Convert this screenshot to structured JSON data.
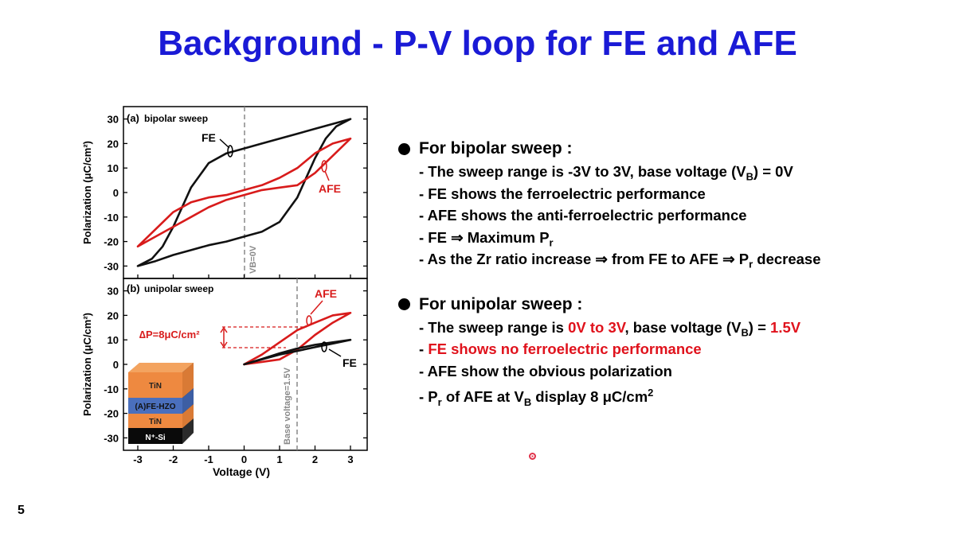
{
  "slide": {
    "title": "Background - P-V loop for FE and AFE",
    "page_number": "5"
  },
  "bullets": [
    {
      "heading": "For bipolar sweep :",
      "lines": [
        {
          "parts": [
            {
              "t": "- The sweep range is -3V to 3V, base voltage (V"
            },
            {
              "t": "B",
              "sub": true
            },
            {
              "t": ") = 0V"
            }
          ]
        },
        {
          "parts": [
            {
              "t": "- FE shows the ferroelectric performance"
            }
          ]
        },
        {
          "parts": [
            {
              "t": "- AFE shows the anti-ferroelectric performance"
            }
          ]
        },
        {
          "parts": [
            {
              "t": "- FE ⇒ Maximum P"
            },
            {
              "t": "r",
              "sub": true
            }
          ]
        },
        {
          "parts": [
            {
              "t": "- As the Zr ratio increase ⇒ from FE to AFE ⇒ P"
            },
            {
              "t": "r",
              "sub": true
            },
            {
              "t": " decrease"
            }
          ]
        }
      ]
    },
    {
      "heading": "For unipolar sweep :",
      "lines": [
        {
          "parts": [
            {
              "t": "- The sweep range is "
            },
            {
              "t": "0V to 3V",
              "red": true
            },
            {
              "t": ", base voltage (V"
            },
            {
              "t": "B",
              "sub": true
            },
            {
              "t": ") = "
            },
            {
              "t": "1.5V",
              "red": true
            }
          ]
        },
        {
          "parts": [
            {
              "t": "- "
            },
            {
              "t": "FE shows no ferroelectric performance",
              "red": true
            }
          ]
        },
        {
          "parts": [
            {
              "t": "- AFE show the obvious polarization"
            }
          ]
        },
        {
          "parts": [
            {
              "t": "- P"
            },
            {
              "t": "r",
              "sub": true
            },
            {
              "t": " of AFE at V"
            },
            {
              "t": "B",
              "sub": true
            },
            {
              "t": " display 8 μC/cm"
            },
            {
              "t": "2",
              "sup": true
            }
          ]
        }
      ]
    }
  ],
  "colors": {
    "title": "#1a1ad6",
    "fe": "#111111",
    "afe": "#d81b1b",
    "highlight": "#e0121c",
    "guide": "#888888"
  },
  "figure": {
    "panel_a_label": "(a)",
    "panel_a_caption": "bipolar sweep",
    "panel_b_label": "(b)",
    "panel_b_caption": "unipolar sweep",
    "ylabel": "Polarization (μC/cm²)",
    "xlabel": "Voltage (V)",
    "x_ticks": [
      "-3",
      "-2",
      "-1",
      "0",
      "1",
      "2",
      "3"
    ],
    "y_ticks": [
      "30",
      "20",
      "10",
      "0",
      "-10",
      "-20",
      "-30"
    ],
    "vb_a_label": "VB=0V",
    "vb_b_label": "Base voltage=1.5V",
    "fe_label": "FE",
    "afe_label": "AFE",
    "delta_p_label": "∆P=8μC/cm²",
    "stack_layers": [
      "TiN",
      "(A)FE-HZO",
      "TiN",
      "N⁺-Si"
    ]
  },
  "chart_data": [
    {
      "type": "line",
      "title": "(a) bipolar sweep",
      "xlabel": "Voltage (V)",
      "ylabel": "Polarization (μC/cm²)",
      "xlim": [
        -3.3,
        3.5
      ],
      "ylim": [
        -33,
        33
      ],
      "series": [
        {
          "name": "FE",
          "color": "#111111",
          "x": [
            -3,
            -2.5,
            -2,
            -1.5,
            -1,
            -0.5,
            0,
            0.5,
            1,
            1.5,
            2,
            2.3,
            2.6,
            3,
            3,
            2.5,
            2,
            1.5,
            1,
            0.5,
            0,
            -0.5,
            -1,
            -1.5,
            -2,
            -2.3,
            -2.6,
            -3
          ],
          "y": [
            -30,
            -28,
            -25.5,
            -23.5,
            -21.5,
            -20,
            -18,
            -16,
            -12,
            -2,
            14,
            22,
            27,
            30,
            30,
            28,
            26,
            24,
            22,
            20,
            18,
            16,
            12,
            2,
            -14,
            -22,
            -27,
            -30
          ]
        },
        {
          "name": "AFE",
          "color": "#d81b1b",
          "x": [
            -3,
            -2.5,
            -2,
            -1.5,
            -1,
            -0.5,
            0,
            0.5,
            1,
            1.5,
            2,
            2.5,
            3,
            3,
            2.5,
            2,
            1.5,
            1,
            0.5,
            0,
            -0.5,
            -1,
            -1.5,
            -2,
            -2.5,
            -3
          ],
          "y": [
            -22,
            -18,
            -14,
            -10,
            -6,
            -3,
            -1,
            1,
            2,
            3,
            8,
            15,
            22,
            22,
            20,
            16,
            10,
            6,
            3,
            1,
            -1,
            -2,
            -4,
            -8,
            -15,
            -22
          ]
        }
      ]
    },
    {
      "type": "line",
      "title": "(b) unipolar sweep",
      "xlabel": "Voltage (V)",
      "ylabel": "Polarization (μC/cm²)",
      "xlim": [
        -3.3,
        3.5
      ],
      "ylim": [
        -33,
        33
      ],
      "series": [
        {
          "name": "AFE",
          "color": "#d81b1b",
          "x": [
            0,
            0.5,
            1,
            1.5,
            2,
            2.5,
            3,
            3,
            2.5,
            2,
            1.5,
            1,
            0.5,
            0
          ],
          "y": [
            0,
            1,
            2,
            6,
            12,
            17,
            21,
            21,
            20,
            17,
            14,
            9,
            4,
            0
          ]
        },
        {
          "name": "FE",
          "color": "#111111",
          "x": [
            0,
            0.5,
            1,
            1.5,
            2,
            2.5,
            3,
            3,
            2.5,
            2,
            1.5,
            1,
            0.5,
            0
          ],
          "y": [
            0,
            2,
            4,
            5.5,
            7,
            8.5,
            10,
            10,
            9,
            8,
            6.5,
            4.5,
            2.2,
            0
          ]
        }
      ]
    }
  ]
}
